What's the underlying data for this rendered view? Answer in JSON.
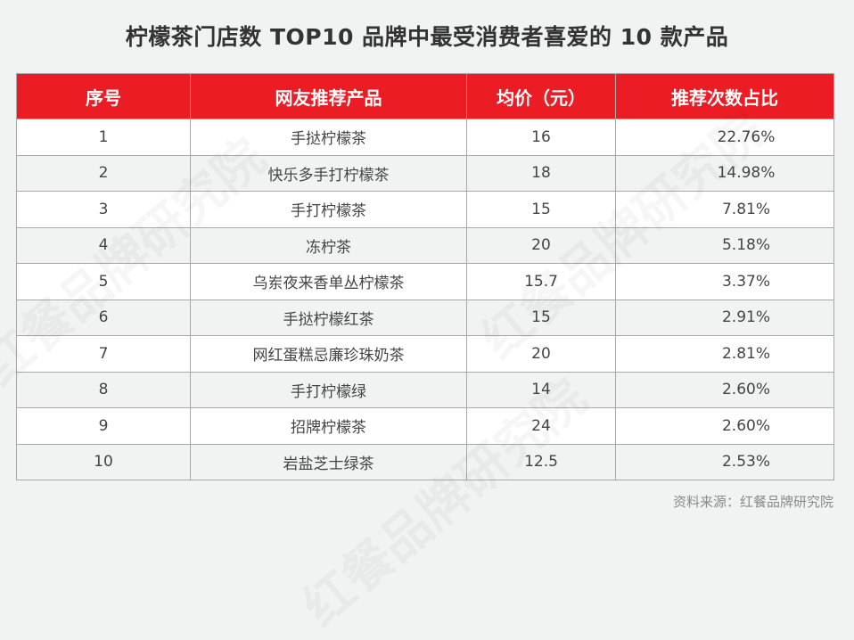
{
  "title": "柠檬茶门店数 TOP10 品牌中最受消费者喜爱的 10 款产品",
  "table": {
    "headers": [
      "序号",
      "网友推荐产品",
      "均价（元）",
      "推荐次数占比"
    ],
    "rows": [
      {
        "rank": "1",
        "product": "手挞柠檬茶",
        "price": "16",
        "share": "22.76%"
      },
      {
        "rank": "2",
        "product": "快乐多手打柠檬茶",
        "price": "18",
        "share": "14.98%"
      },
      {
        "rank": "3",
        "product": "手打柠檬茶",
        "price": "15",
        "share": "7.81%"
      },
      {
        "rank": "4",
        "product": "冻柠茶",
        "price": "20",
        "share": "5.18%"
      },
      {
        "rank": "5",
        "product": "乌岽夜来香单丛柠檬茶",
        "price": "15.7",
        "share": "3.37%"
      },
      {
        "rank": "6",
        "product": "手挞柠檬红茶",
        "price": "15",
        "share": "2.91%"
      },
      {
        "rank": "7",
        "product": "网红蛋糕忌廉珍珠奶茶",
        "price": "20",
        "share": "2.81%"
      },
      {
        "rank": "8",
        "product": "手打柠檬绿",
        "price": "14",
        "share": "2.60%"
      },
      {
        "rank": "9",
        "product": "招牌柠檬茶",
        "price": "24",
        "share": "2.60%"
      },
      {
        "rank": "10",
        "product": "岩盐芝士绿茶",
        "price": "12.5",
        "share": "2.53%"
      }
    ]
  },
  "source": "资料来源：红餐品牌研究院",
  "watermark": "红餐品牌研究院",
  "colors": {
    "header_bg": "#ec1c24",
    "page_bg": "#f1f2f2"
  }
}
